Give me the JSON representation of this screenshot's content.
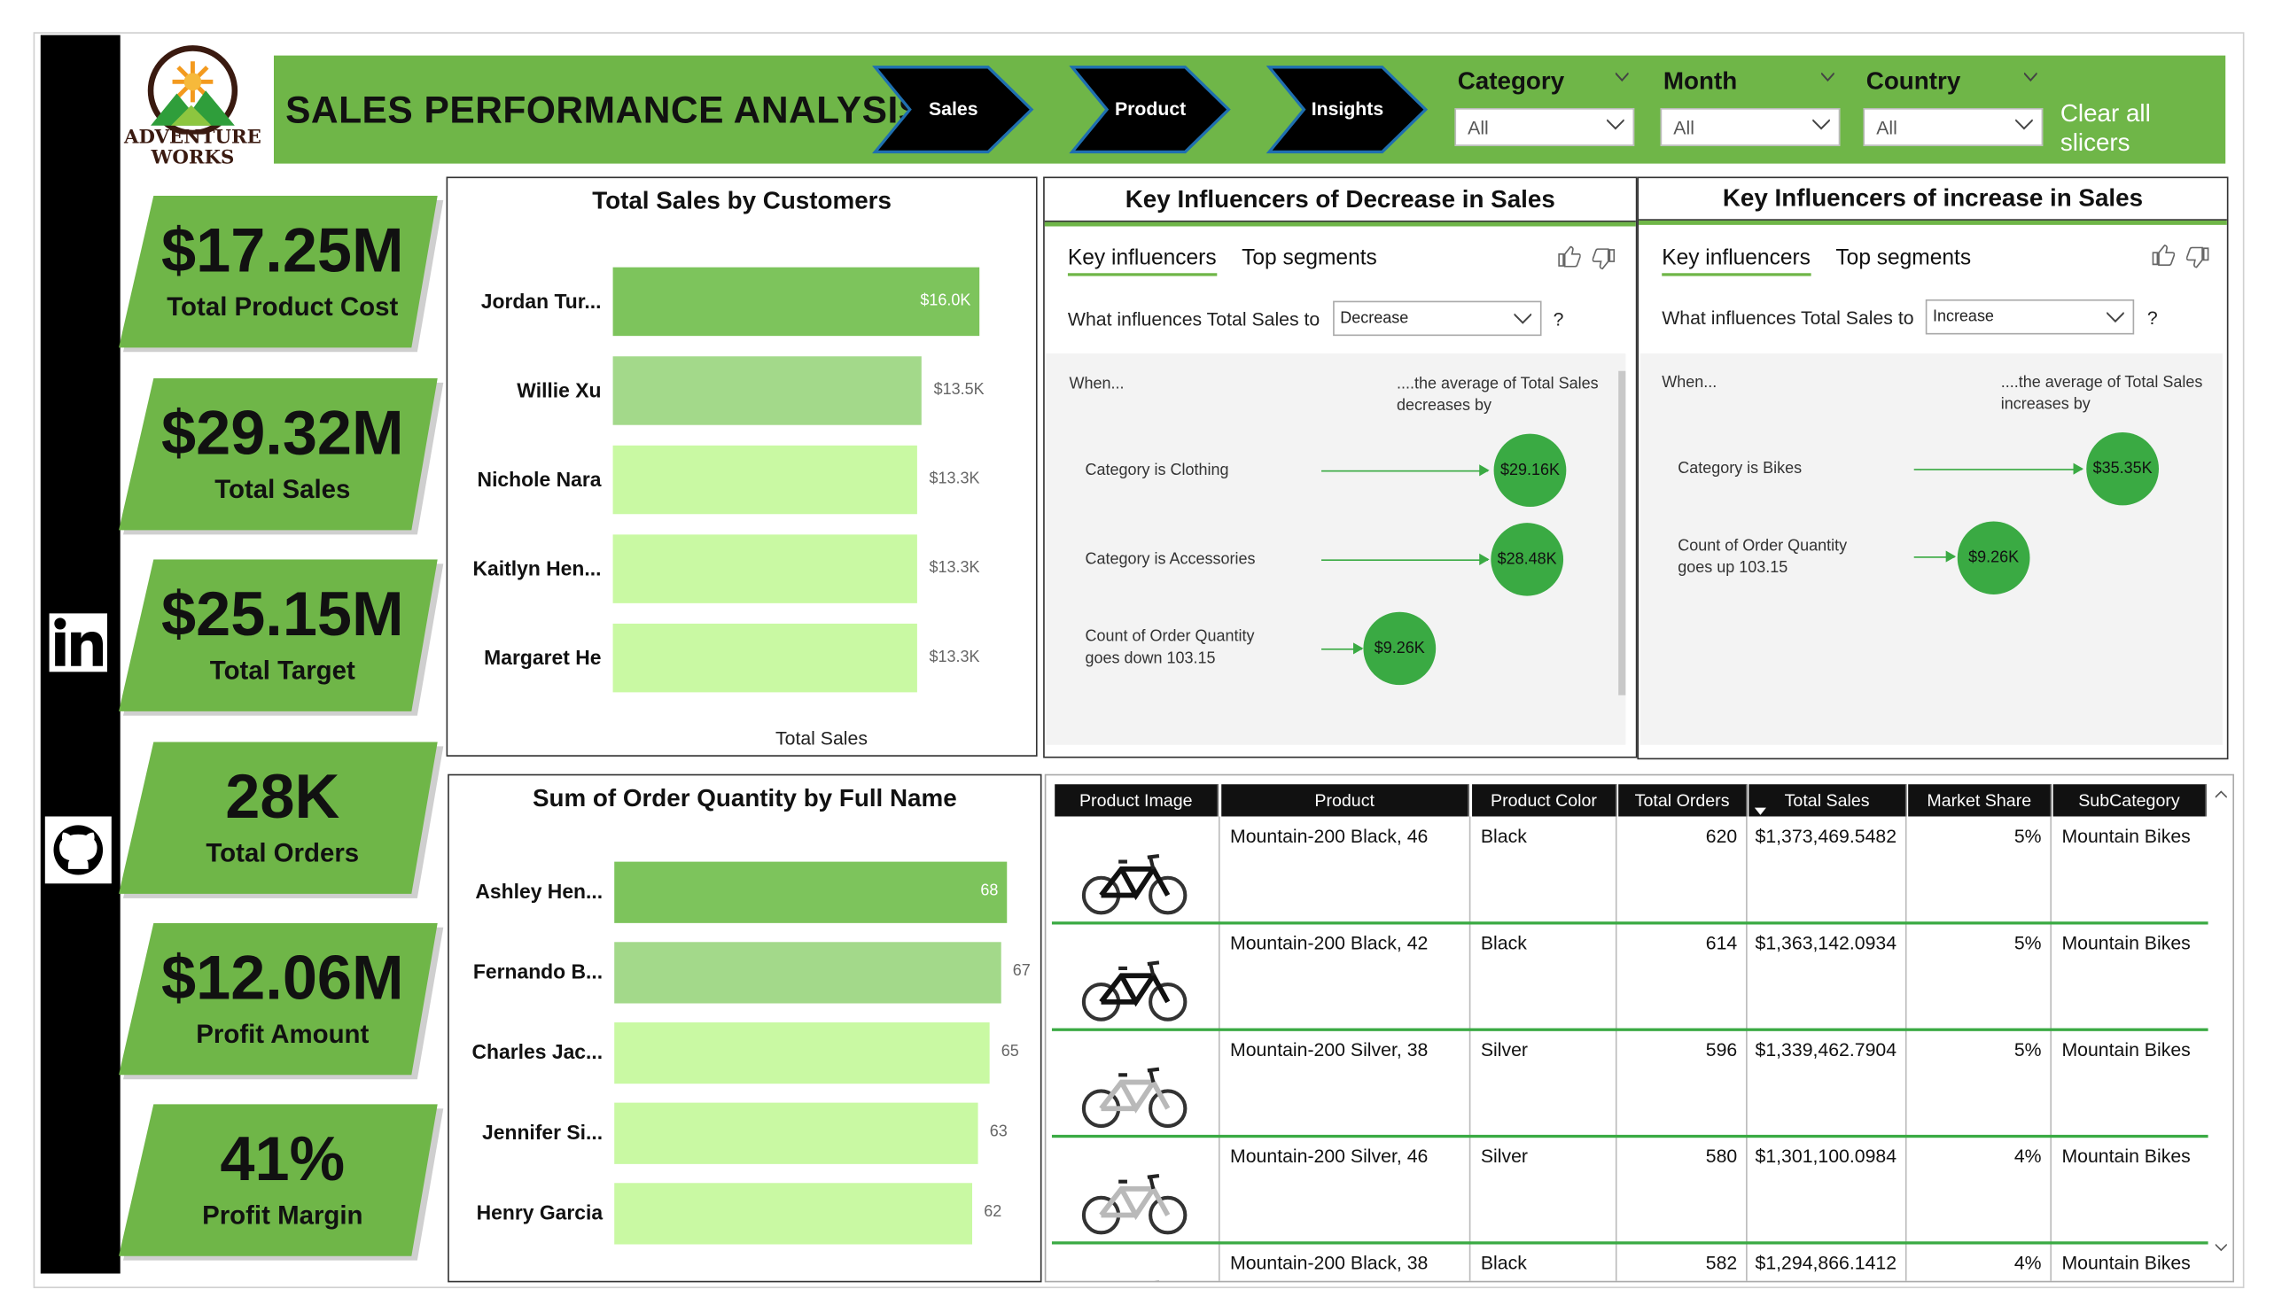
{
  "brand": {
    "line1": "ADVENTURE",
    "line2": "WORKS"
  },
  "header": {
    "title": "SALES PERFORMANCE ANALYSIS",
    "nav": [
      "Sales",
      "Product",
      "Insights"
    ],
    "slicers": [
      {
        "label": "Category",
        "value": "All"
      },
      {
        "label": "Month",
        "value": "All"
      },
      {
        "label": "Country",
        "value": "All"
      }
    ],
    "clear_label": "Clear all slicers"
  },
  "social": {
    "linkedin": "linkedin-icon",
    "github": "github-icon"
  },
  "kpis": [
    {
      "value": "$17.25M",
      "label": "Total Product Cost"
    },
    {
      "value": "$29.32M",
      "label": "Total Sales"
    },
    {
      "value": "$25.15M",
      "label": "Total Target"
    },
    {
      "value": "28K",
      "label": "Total Orders"
    },
    {
      "value": "$12.06M",
      "label": "Profit Amount"
    },
    {
      "value": "41%",
      "label": "Profit Margin"
    }
  ],
  "chart_data": [
    {
      "type": "bar",
      "title": "Total Sales by Customers",
      "xlabel": "Total Sales",
      "categories": [
        "Jordan Tur...",
        "Willie Xu",
        "Nichole Nara",
        "Kaitlyn Hen...",
        "Margaret He"
      ],
      "values": [
        16000,
        13500,
        13300,
        13300,
        13300
      ],
      "value_labels": [
        "$16.0K",
        "$13.5K",
        "$13.3K",
        "$13.3K",
        "$13.3K"
      ],
      "xlim": [
        0,
        16000
      ]
    },
    {
      "type": "bar",
      "title": "Sum of Order Quantity by Full Name",
      "categories": [
        "Ashley Hen...",
        "Fernando B...",
        "Charles Jac...",
        "Jennifer Si...",
        "Henry Garcia"
      ],
      "values": [
        68,
        67,
        65,
        63,
        62
      ],
      "value_labels": [
        "68",
        "67",
        "65",
        "63",
        "62"
      ],
      "xlim": [
        0,
        68
      ]
    }
  ],
  "key_influencers": [
    {
      "title": "Key Influencers of Decrease in Sales",
      "tabs": [
        "Key influencers",
        "Top segments"
      ],
      "question": "What influences Total Sales to",
      "selected": "Decrease",
      "help": "?",
      "when": "When...",
      "result_header": "....the average of Total Sales decreases by",
      "items": [
        {
          "text": "Category is Clothing",
          "value": "$29.16K"
        },
        {
          "text": "Category is Accessories",
          "value": "$28.48K"
        },
        {
          "text": "Count of Order Quantity goes down 103.15",
          "value": "$9.26K"
        }
      ]
    },
    {
      "title": "Key Influencers of increase in Sales",
      "tabs": [
        "Key influencers",
        "Top segments"
      ],
      "question": "What influences Total Sales to",
      "selected": "Increase",
      "help": "?",
      "when": "When...",
      "result_header": "....the average of Total Sales increases by",
      "items": [
        {
          "text": "Category is Bikes",
          "value": "$35.35K"
        },
        {
          "text": "Count of Order Quantity goes up 103.15",
          "value": "$9.26K"
        }
      ]
    }
  ],
  "table": {
    "columns": [
      "Product Image",
      "Product",
      "Product Color",
      "Total Orders",
      "Total Sales",
      "Market Share",
      "SubCategory"
    ],
    "rows": [
      {
        "img": "bike-black",
        "product": "Mountain-200 Black, 46",
        "color": "Black",
        "orders": "620",
        "sales": "$1,373,469.5482",
        "share": "5%",
        "sub": "Mountain Bikes"
      },
      {
        "img": "bike-black",
        "product": "Mountain-200 Black, 42",
        "color": "Black",
        "orders": "614",
        "sales": "$1,363,142.0934",
        "share": "5%",
        "sub": "Mountain Bikes"
      },
      {
        "img": "bike-silver",
        "product": "Mountain-200 Silver, 38",
        "color": "Silver",
        "orders": "596",
        "sales": "$1,339,462.7904",
        "share": "5%",
        "sub": "Mountain Bikes"
      },
      {
        "img": "bike-silver",
        "product": "Mountain-200 Silver, 46",
        "color": "Silver",
        "orders": "580",
        "sales": "$1,301,100.0984",
        "share": "4%",
        "sub": "Mountain Bikes"
      },
      {
        "img": "bike-black",
        "product": "Mountain-200 Black, 38",
        "color": "Black",
        "orders": "582",
        "sales": "$1,294,866.1412",
        "share": "4%",
        "sub": "Mountain Bikes"
      }
    ]
  },
  "colors": {
    "accent": "#6fb648",
    "bar_dark": "#7dc45c",
    "bar_mid": "#a3d98a",
    "bar_light": "#c9f9a3",
    "bubble": "#3aaa43"
  }
}
